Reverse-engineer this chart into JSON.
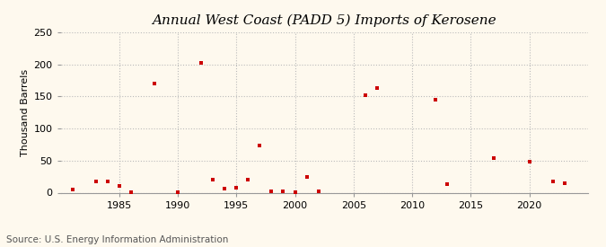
{
  "title": "Annual West Coast (PADD 5) Imports of Kerosene",
  "ylabel": "Thousand Barrels",
  "source": "Source: U.S. Energy Information Administration",
  "background_color": "#fef9ee",
  "marker_color": "#cc0000",
  "data": [
    [
      1981,
      5
    ],
    [
      1983,
      18
    ],
    [
      1984,
      17
    ],
    [
      1985,
      11
    ],
    [
      1986,
      1
    ],
    [
      1988,
      170
    ],
    [
      1990,
      1
    ],
    [
      1992,
      202
    ],
    [
      1993,
      20
    ],
    [
      1994,
      6
    ],
    [
      1995,
      8
    ],
    [
      1996,
      20
    ],
    [
      1997,
      74
    ],
    [
      1998,
      2
    ],
    [
      1999,
      2
    ],
    [
      2000,
      1
    ],
    [
      2001,
      25
    ],
    [
      2002,
      2
    ],
    [
      2006,
      152
    ],
    [
      2007,
      163
    ],
    [
      2012,
      145
    ],
    [
      2013,
      13
    ],
    [
      2017,
      54
    ],
    [
      2020,
      48
    ],
    [
      2022,
      17
    ],
    [
      2023,
      14
    ]
  ],
  "xlim": [
    1980,
    2025
  ],
  "ylim": [
    0,
    250
  ],
  "yticks": [
    0,
    50,
    100,
    150,
    200,
    250
  ],
  "xticks": [
    1985,
    1990,
    1995,
    2000,
    2005,
    2010,
    2015,
    2020
  ],
  "title_fontsize": 11,
  "label_fontsize": 8,
  "tick_fontsize": 8,
  "source_fontsize": 7.5,
  "grid_color": "#bbbbbb",
  "grid_linestyle": ":",
  "grid_linewidth": 0.8
}
